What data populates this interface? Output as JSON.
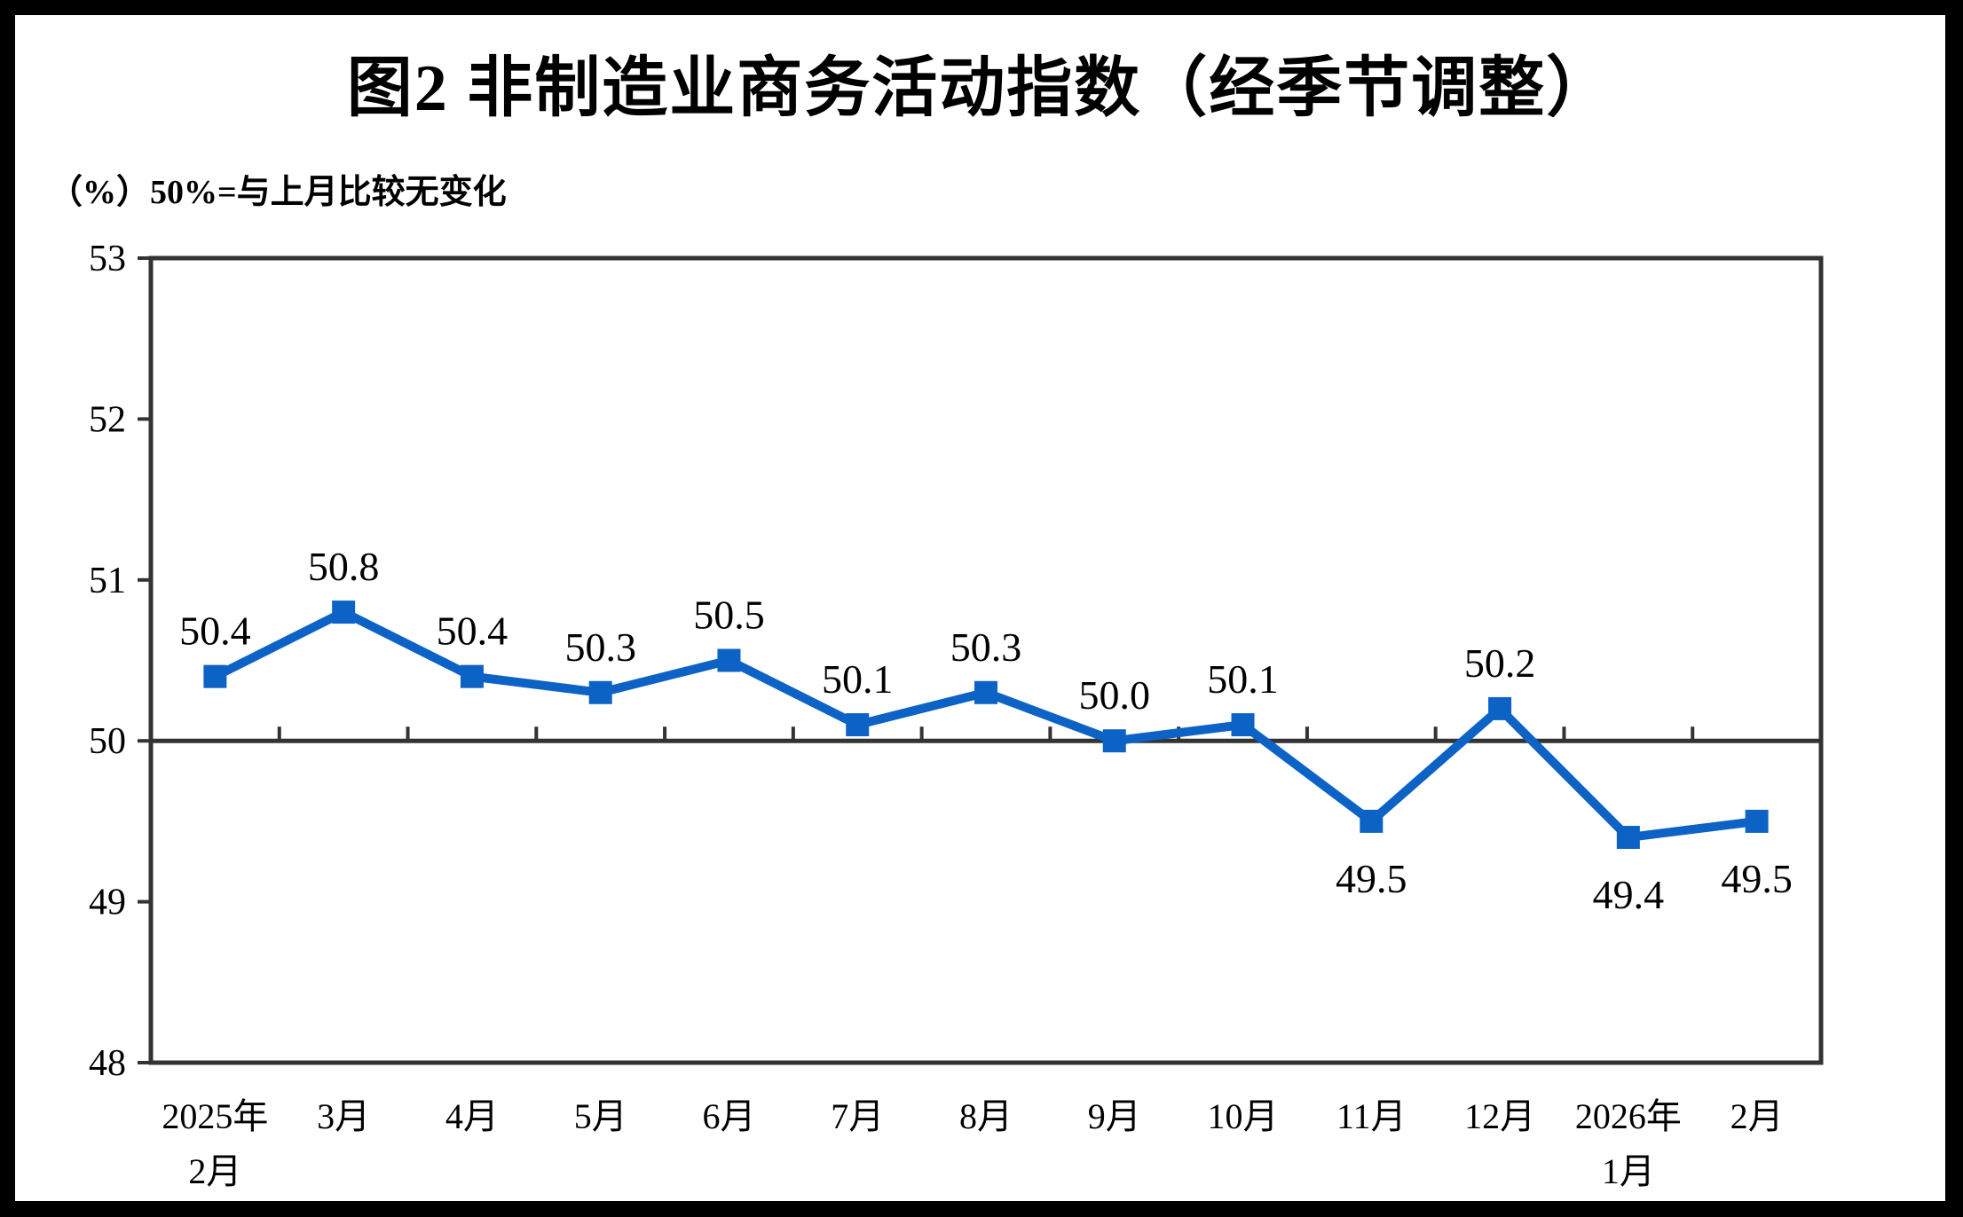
{
  "chart_data": {
    "type": "line",
    "title": "图2 非制造业商务活动指数（经季节调整）",
    "axis_note": "（%）50%=与上月比较无变化",
    "categories": [
      "2025年\n2月",
      "3月",
      "4月",
      "5月",
      "6月",
      "7月",
      "8月",
      "9月",
      "10月",
      "11月",
      "12月",
      "2026年\n1月",
      "2月"
    ],
    "series": [
      {
        "name": "非制造业商务活动指数",
        "values": [
          50.4,
          50.8,
          50.4,
          50.3,
          50.5,
          50.1,
          50.3,
          50.0,
          50.1,
          49.5,
          50.2,
          49.4,
          49.5
        ],
        "labels": [
          "50.4",
          "50.8",
          "50.4",
          "50.3",
          "50.5",
          "50.1",
          "50.3",
          "50.0",
          "50.1",
          "49.5",
          "50.2",
          "49.4",
          "49.5"
        ]
      }
    ],
    "ylim": [
      48,
      53
    ],
    "yticks": [
      48,
      49,
      50,
      51,
      52,
      53
    ],
    "reference_line": 50,
    "grid": "off",
    "legend": "none",
    "colors": {
      "line": "#0D62C6",
      "marker": "#0D62C6",
      "axis": "#333333",
      "text": "#000000",
      "background": "#ffffff",
      "frame": "#000000"
    }
  }
}
